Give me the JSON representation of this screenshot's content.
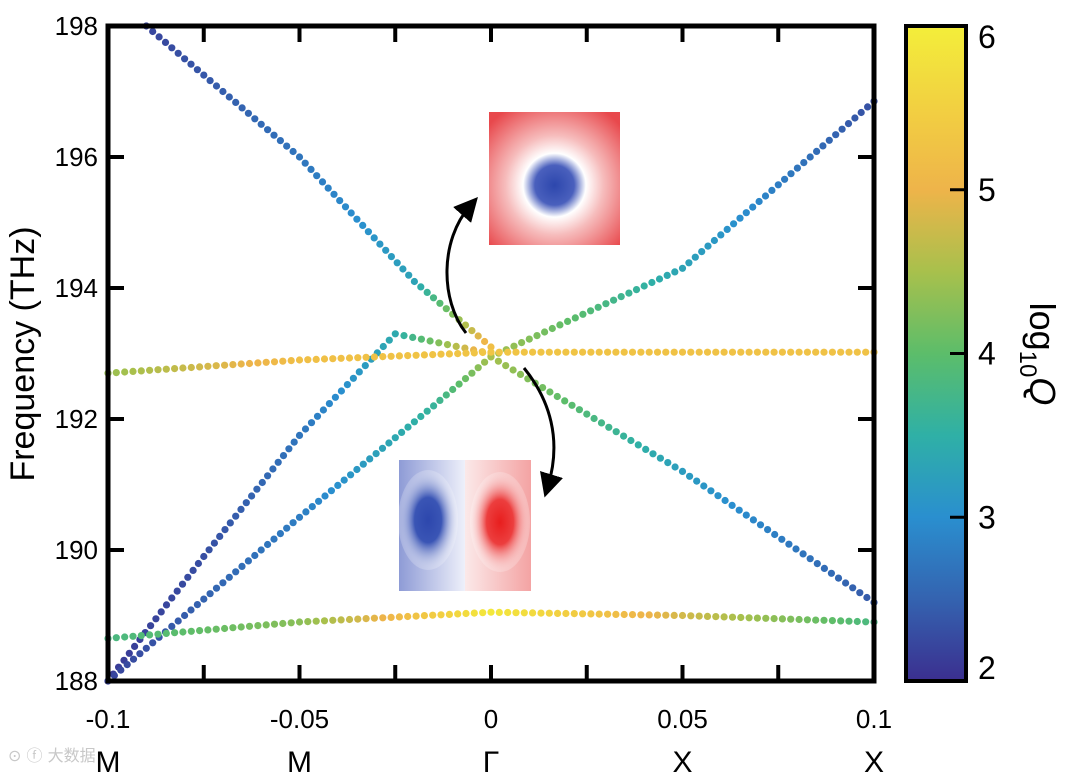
{
  "chart_data": {
    "type": "scatter",
    "xlabel": "",
    "ylabel": "Frequency (THz)",
    "xlim": [
      -0.1,
      0.1
    ],
    "ylim": [
      188,
      198
    ],
    "xticks": [
      "-0.1",
      "-0.05",
      "0",
      "0.05",
      "0.1"
    ],
    "xtick_values": [
      -0.1,
      -0.05,
      0,
      0.05,
      0.1
    ],
    "kpoint_labels": [
      "M",
      "M",
      "Γ",
      "X",
      "X"
    ],
    "yticks": [
      "188",
      "190",
      "192",
      "194",
      "196",
      "198"
    ],
    "ytick_values": [
      188,
      190,
      192,
      194,
      196,
      198
    ],
    "colorbar": {
      "label": "log₁₀Q",
      "label_main": "log",
      "label_sub": "10",
      "label_var": "Q",
      "range": [
        2,
        6
      ],
      "ticks": [
        "2",
        "3",
        "4",
        "5",
        "6"
      ],
      "tick_values": [
        2,
        3,
        4,
        5,
        6
      ],
      "colormap": [
        "#3b2f8f",
        "#3463b0",
        "#2a8fcf",
        "#2fb0a6",
        "#5cbd6a",
        "#a8c04c",
        "#eeb44a",
        "#f2d041",
        "#f3ee3a"
      ]
    },
    "series": [
      {
        "x": [
          -0.1,
          -0.075,
          -0.05,
          -0.025,
          0
        ],
        "y": [
          188.0,
          189.9,
          191.75,
          193.3,
          193.0
        ],
        "logQ": [
          2.1,
          2.3,
          2.7,
          3.4,
          5.3
        ]
      },
      {
        "x": [
          -0.09,
          -0.05,
          -0.02,
          0
        ],
        "y": [
          198.0,
          196.0,
          194.1,
          193.1
        ],
        "logQ": [
          2.2,
          2.7,
          3.3,
          5.2
        ]
      },
      {
        "x": [
          -0.1,
          -0.05,
          -0.015,
          0
        ],
        "y": [
          188.0,
          190.5,
          192.2,
          192.95
        ],
        "logQ": [
          2.2,
          2.8,
          3.6,
          4.5
        ]
      },
      {
        "x": [
          0,
          0.05,
          0.1
        ],
        "y": [
          192.95,
          194.3,
          196.85
        ],
        "logQ": [
          4.5,
          3.3,
          2.3
        ]
      },
      {
        "x": [
          0,
          0.05,
          0.1
        ],
        "y": [
          192.95,
          191.2,
          189.2
        ],
        "logQ": [
          4.5,
          3.2,
          2.4
        ]
      },
      {
        "x": [
          -0.1,
          -0.05,
          0,
          0.05,
          0.1
        ],
        "y": [
          192.7,
          192.9,
          193.02,
          193.02,
          193.02
        ],
        "logQ": [
          4.4,
          5.2,
          5.3,
          5.25,
          5.25
        ]
      },
      {
        "x": [
          -0.1,
          -0.05,
          0,
          0.05,
          0.1
        ],
        "y": [
          188.65,
          188.9,
          189.05,
          189.0,
          188.9
        ],
        "logQ": [
          3.8,
          4.3,
          5.9,
          4.8,
          3.8
        ]
      }
    ],
    "insets": [
      {
        "type": "field-monopole",
        "colors": [
          "#e8484c",
          "#ffffff",
          "#3a4fb0"
        ]
      },
      {
        "type": "field-dipole",
        "colors": [
          "#3a4fb0",
          "#ffffff",
          "#e82a2a"
        ]
      }
    ]
  }
}
